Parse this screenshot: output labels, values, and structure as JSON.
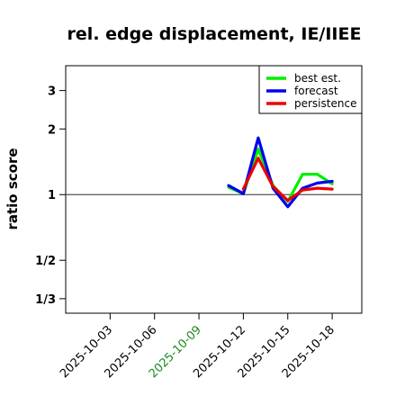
{
  "chart_data": {
    "type": "line",
    "title": "rel. edge displacement, IE/IIEE",
    "xlabel": "",
    "ylabel": "ratio score",
    "y_scale": "log",
    "ylim": [
      0.286,
      3.9
    ],
    "y_ticks": [
      {
        "value": 0.3333,
        "label": "1/3"
      },
      {
        "value": 0.5,
        "label": "1/2"
      },
      {
        "value": 1,
        "label": "1"
      },
      {
        "value": 2,
        "label": "2"
      },
      {
        "value": 3,
        "label": "3"
      }
    ],
    "xlim": [
      "2025-09-30",
      "2025-10-20"
    ],
    "x_ticks": [
      {
        "date": "2025-10-03",
        "label": "2025-10-03",
        "color": "#000000"
      },
      {
        "date": "2025-10-06",
        "label": "2025-10-06",
        "color": "#000000"
      },
      {
        "date": "2025-10-09",
        "label": "2025-10-09",
        "color": "#1a8a1a"
      },
      {
        "date": "2025-10-12",
        "label": "2025-10-12",
        "color": "#000000"
      },
      {
        "date": "2025-10-15",
        "label": "2025-10-15",
        "color": "#000000"
      },
      {
        "date": "2025-10-18",
        "label": "2025-10-18",
        "color": "#000000"
      }
    ],
    "reference_line": 1,
    "legend_position": "top-right",
    "series": [
      {
        "name": "best est.",
        "color": "#00ee00",
        "x": [
          "2025-10-11",
          "2025-10-12",
          "2025-10-13",
          "2025-10-14",
          "2025-10-15",
          "2025-10-16",
          "2025-10-17",
          "2025-10-18"
        ],
        "values": [
          1.08,
          1.01,
          1.62,
          1.1,
          0.93,
          1.24,
          1.24,
          1.12
        ]
      },
      {
        "name": "forecast",
        "color": "#0000ee",
        "x": [
          "2025-10-11",
          "2025-10-12",
          "2025-10-13",
          "2025-10-14",
          "2025-10-15",
          "2025-10-16",
          "2025-10-17",
          "2025-10-18"
        ],
        "values": [
          1.1,
          1.01,
          1.82,
          1.07,
          0.88,
          1.07,
          1.13,
          1.15
        ]
      },
      {
        "name": "persistence",
        "color": "#ee0000",
        "x": [
          "2025-10-12",
          "2025-10-13",
          "2025-10-14",
          "2025-10-15",
          "2025-10-16",
          "2025-10-17",
          "2025-10-18"
        ],
        "values": [
          1.06,
          1.47,
          1.09,
          0.94,
          1.05,
          1.07,
          1.06
        ]
      }
    ]
  }
}
